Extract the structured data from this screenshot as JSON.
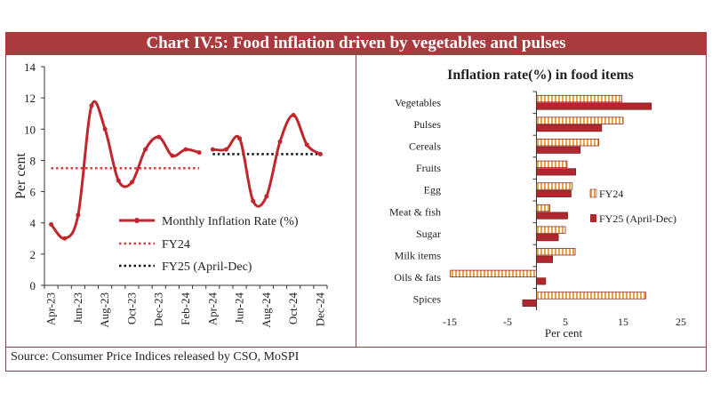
{
  "title": "Chart IV.5: Food inflation driven by vegetables and pulses",
  "source": "Source: Consumer Price Indices released by CSO, MoSPI",
  "colors": {
    "accent": "#a93b3f",
    "line": "#c0272d",
    "fy24": "#e8a24a",
    "fy25": "#b0282d"
  },
  "chart_data": [
    {
      "type": "line",
      "ylabel": "Per cent",
      "ylim": [
        0,
        14
      ],
      "yticks": [
        "0",
        "2",
        "4",
        "6",
        "8",
        "10",
        "12",
        "14"
      ],
      "xtick_labels": [
        "Apr-23",
        "Jun-23",
        "Aug-23",
        "Oct-23",
        "Dec-23",
        "Feb-24",
        "Apr-24",
        "Jun-24",
        "Aug-24",
        "Oct-24",
        "Dec-24"
      ],
      "series": [
        {
          "name": "Monthly Inflation Rate (%)",
          "segment": "FY24",
          "x": [
            0,
            1,
            2,
            3,
            4,
            5,
            6,
            7,
            8,
            9,
            10,
            11
          ],
          "values": [
            3.9,
            3.0,
            4.5,
            11.5,
            10.0,
            6.7,
            6.6,
            8.7,
            9.5,
            8.3,
            8.7,
            8.5
          ]
        },
        {
          "name": "Monthly Inflation Rate (%)",
          "segment": "FY25",
          "x": [
            12,
            13,
            14,
            15,
            16,
            17,
            18,
            19,
            20
          ],
          "values": [
            8.7,
            8.7,
            9.4,
            5.4,
            5.7,
            9.2,
            10.9,
            9.0,
            8.4
          ]
        }
      ],
      "reference_lines": [
        {
          "name": "FY24",
          "value": 7.5,
          "x_range": [
            0,
            11
          ],
          "style": "dotted",
          "color": "#d43b3b"
        },
        {
          "name": "FY25 (April-Dec)",
          "value": 8.4,
          "x_range": [
            12,
            20
          ],
          "style": "dotted",
          "color": "#111111"
        }
      ],
      "legend": [
        "Monthly Inflation Rate (%)",
        "FY24",
        "FY25 (April-Dec)"
      ]
    },
    {
      "type": "bar",
      "orientation": "horizontal",
      "title": "Inflation rate(%) in food items",
      "xlabel": "Per cent",
      "xlim": [
        -15,
        25
      ],
      "xticks": [
        "-15",
        "-5",
        "5",
        "15",
        "25"
      ],
      "categories": [
        "Vegetables",
        "Pulses",
        "Cereals",
        "Fruits",
        "Egg",
        "Meat & fish",
        "Sugar",
        "Milk items",
        "Oils & fats",
        "Spices"
      ],
      "series": [
        {
          "name": "FY24",
          "values": [
            14.8,
            15.0,
            10.8,
            5.3,
            6.2,
            2.3,
            5.0,
            6.7,
            -14.9,
            18.9
          ]
        },
        {
          "name": "FY25 (April-Dec)",
          "values": [
            19.9,
            11.3,
            7.6,
            6.8,
            6.0,
            5.4,
            3.8,
            2.8,
            1.6,
            -2.4
          ]
        }
      ],
      "legend": [
        "FY24",
        "FY25 (April-Dec)"
      ]
    }
  ]
}
